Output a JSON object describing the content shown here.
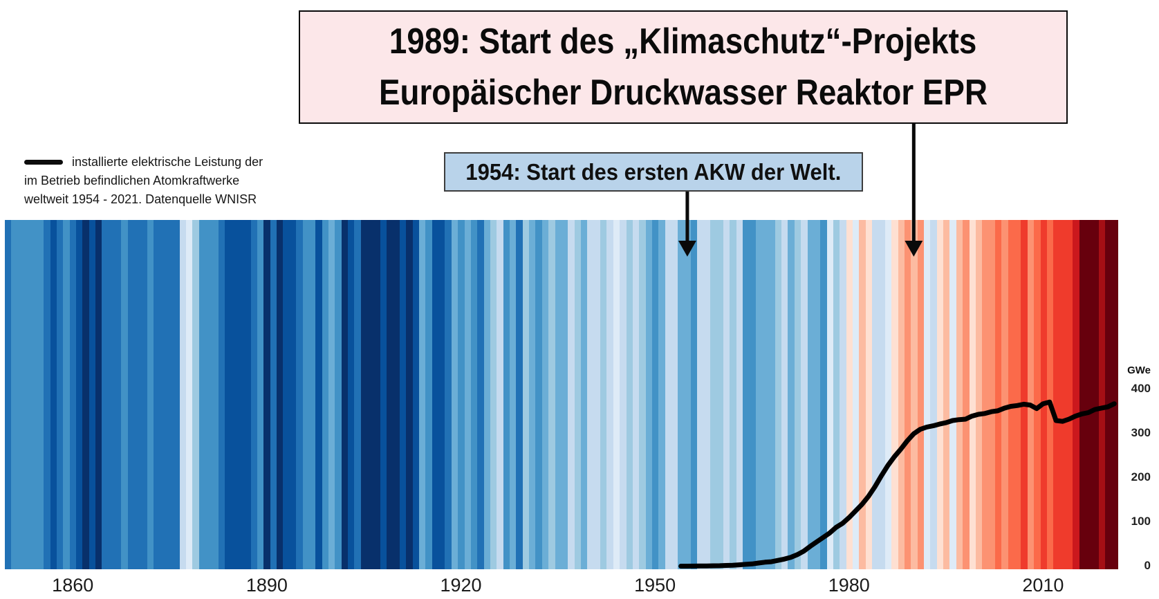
{
  "title_box": {
    "line1": "1989: Start des „Klimaschutz“-Projekts",
    "line2": "Europäischer Druckwasser Reaktor EPR",
    "bg_color": "#fce7e9",
    "arrow_year": 1990
  },
  "event_box": {
    "text": "1954: Start des ersten AKW der Welt.",
    "bg_color": "#b9d3ea",
    "arrow_year": 1955
  },
  "legend": {
    "swatch": "black-line",
    "line1": "installierte elektrische Leistung der",
    "line2": "im Betrieb befindlichen Atomkraftwerke",
    "line3": "weltweit 1954 - 2021. Datenquelle WNISR"
  },
  "chart_data": {
    "type": [
      "heatmap",
      "line"
    ],
    "title": "Warming stripes (globale Temperaturanomalie pro Jahr) mit installierter Atomkraft-Leistung",
    "x_ticks": [
      "1860",
      "1890",
      "1920",
      "1950",
      "1980",
      "2010"
    ],
    "x_tick_years": [
      1860,
      1890,
      1920,
      1950,
      1980,
      2010
    ],
    "y_axis": {
      "label": "GWe",
      "ticks": [
        400,
        300,
        200,
        100,
        0
      ],
      "range": [
        0,
        430
      ]
    },
    "grid": false,
    "stripes": {
      "description": "Ed-Hawkins-style warming stripes, one colored bar per year",
      "start_year": 1850,
      "end_year": 2021,
      "palette": {
        "B8": "#08306b",
        "B7": "#08519c",
        "B6": "#2171b5",
        "B5": "#4292c6",
        "B4": "#6baed6",
        "B3": "#9ecae1",
        "B2": "#c6dbef",
        "B1": "#deebf7",
        "R1": "#fee0d2",
        "R2": "#fcbba1",
        "R3": "#fc9272",
        "R4": "#fb6a4a",
        "R5": "#ef3b2c",
        "R6": "#cb181d",
        "R7": "#a50f15",
        "R8": "#67000d"
      },
      "colors_by_year": [
        "B6",
        "B5",
        "B5",
        "B5",
        "B5",
        "B5",
        "B6",
        "B7",
        "B6",
        "B5",
        "B6",
        "B7",
        "B8",
        "B7",
        "B8",
        "B6",
        "B6",
        "B6",
        "B5",
        "B6",
        "B6",
        "B6",
        "B5",
        "B6",
        "B6",
        "B6",
        "B6",
        "B2",
        "B1",
        "B3",
        "B5",
        "B5",
        "B5",
        "B6",
        "B7",
        "B7",
        "B7",
        "B7",
        "B6",
        "B5",
        "B8",
        "B6",
        "B8",
        "B7",
        "B7",
        "B6",
        "B5",
        "B5",
        "B7",
        "B5",
        "B4",
        "B5",
        "B8",
        "B7",
        "B6",
        "B8",
        "B8",
        "B8",
        "B7",
        "B8",
        "B8",
        "B7",
        "B8",
        "B7",
        "B4",
        "B5",
        "B7",
        "B7",
        "B6",
        "B4",
        "B5",
        "B4",
        "B5",
        "B6",
        "B4",
        "B3",
        "B2",
        "B5",
        "B4",
        "B6",
        "B3",
        "B4",
        "B5",
        "B4",
        "B3",
        "B4",
        "B4",
        "B2",
        "B3",
        "B4",
        "B2",
        "B2",
        "B3",
        "B2",
        "B1",
        "B2",
        "B3",
        "B2",
        "B3",
        "B4",
        "B5",
        "B4",
        "B2",
        "B2",
        "B4",
        "B4",
        "B5",
        "B2",
        "B2",
        "B3",
        "B3",
        "B2",
        "B3",
        "B2",
        "B5",
        "B5",
        "B4",
        "B4",
        "B4",
        "B3",
        "B2",
        "B4",
        "B3",
        "B2",
        "B4",
        "B4",
        "B5",
        "B1",
        "B3",
        "B2",
        "R1",
        "B1",
        "R2",
        "R1",
        "B2",
        "B2",
        "B1",
        "R1",
        "R2",
        "R3",
        "R2",
        "R3",
        "B1",
        "B2",
        "R1",
        "R2",
        "B1",
        "R2",
        "R3",
        "R1",
        "R2",
        "R3",
        "R3",
        "R4",
        "R3",
        "R4",
        "R4",
        "R5",
        "R3",
        "R4",
        "R5",
        "R4",
        "R5",
        "R5",
        "R5",
        "R6",
        "R8",
        "R8",
        "R8",
        "R7",
        "R8",
        "R8"
      ]
    },
    "line_series": {
      "name": "installierte elektrische Leistung der im Betrieb befindlichen Atomkraftwerke weltweit 1954 - 2021 (WNISR)",
      "unit": "GWe",
      "color": "#000000",
      "points": [
        [
          1954,
          0
        ],
        [
          1955,
          0
        ],
        [
          1956,
          0.1
        ],
        [
          1957,
          0.3
        ],
        [
          1958,
          0.5
        ],
        [
          1959,
          0.8
        ],
        [
          1960,
          1
        ],
        [
          1961,
          1.5
        ],
        [
          1962,
          2
        ],
        [
          1963,
          3
        ],
        [
          1964,
          4
        ],
        [
          1965,
          5
        ],
        [
          1966,
          7
        ],
        [
          1967,
          9
        ],
        [
          1968,
          10
        ],
        [
          1969,
          13
        ],
        [
          1970,
          16
        ],
        [
          1971,
          20
        ],
        [
          1972,
          26
        ],
        [
          1973,
          34
        ],
        [
          1974,
          45
        ],
        [
          1975,
          55
        ],
        [
          1976,
          65
        ],
        [
          1977,
          75
        ],
        [
          1978,
          88
        ],
        [
          1979,
          97
        ],
        [
          1980,
          110
        ],
        [
          1981,
          125
        ],
        [
          1982,
          140
        ],
        [
          1983,
          158
        ],
        [
          1984,
          180
        ],
        [
          1985,
          205
        ],
        [
          1986,
          228
        ],
        [
          1987,
          248
        ],
        [
          1988,
          265
        ],
        [
          1989,
          284
        ],
        [
          1990,
          300
        ],
        [
          1991,
          310
        ],
        [
          1992,
          315
        ],
        [
          1993,
          318
        ],
        [
          1994,
          322
        ],
        [
          1995,
          325
        ],
        [
          1996,
          330
        ],
        [
          1997,
          332
        ],
        [
          1998,
          333
        ],
        [
          1999,
          340
        ],
        [
          2000,
          344
        ],
        [
          2001,
          346
        ],
        [
          2002,
          350
        ],
        [
          2003,
          352
        ],
        [
          2004,
          358
        ],
        [
          2005,
          362
        ],
        [
          2006,
          364
        ],
        [
          2007,
          367
        ],
        [
          2008,
          365
        ],
        [
          2009,
          357
        ],
        [
          2010,
          368
        ],
        [
          2011,
          372
        ],
        [
          2012,
          330
        ],
        [
          2013,
          328
        ],
        [
          2014,
          333
        ],
        [
          2015,
          340
        ],
        [
          2016,
          345
        ],
        [
          2017,
          348
        ],
        [
          2018,
          355
        ],
        [
          2019,
          358
        ],
        [
          2020,
          361
        ],
        [
          2021,
          368
        ]
      ]
    }
  }
}
